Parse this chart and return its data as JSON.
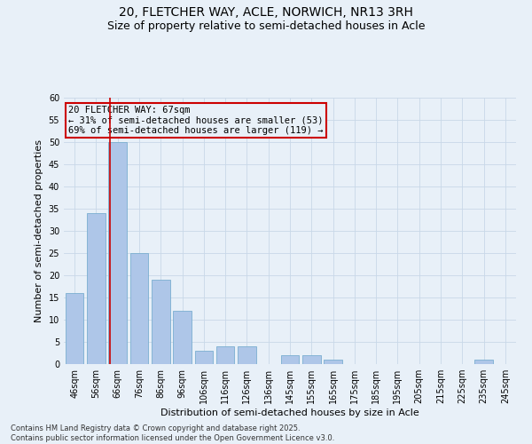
{
  "title": "20, FLETCHER WAY, ACLE, NORWICH, NR13 3RH",
  "subtitle": "Size of property relative to semi-detached houses in Acle",
  "xlabel": "Distribution of semi-detached houses by size in Acle",
  "ylabel": "Number of semi-detached properties",
  "categories": [
    "46sqm",
    "56sqm",
    "66sqm",
    "76sqm",
    "86sqm",
    "96sqm",
    "106sqm",
    "116sqm",
    "126sqm",
    "136sqm",
    "145sqm",
    "155sqm",
    "165sqm",
    "175sqm",
    "185sqm",
    "195sqm",
    "205sqm",
    "215sqm",
    "225sqm",
    "235sqm",
    "245sqm"
  ],
  "values": [
    16,
    34,
    50,
    25,
    19,
    12,
    3,
    4,
    4,
    0,
    2,
    2,
    1,
    0,
    0,
    0,
    0,
    0,
    0,
    1,
    0
  ],
  "bar_color": "#aec6e8",
  "bar_edge_color": "#7aaed0",
  "property_line_color": "#cc0000",
  "annotation_box_text": "20 FLETCHER WAY: 67sqm\n← 31% of semi-detached houses are smaller (53)\n69% of semi-detached houses are larger (119) →",
  "annotation_box_color": "#cc0000",
  "ylim": [
    0,
    60
  ],
  "yticks": [
    0,
    5,
    10,
    15,
    20,
    25,
    30,
    35,
    40,
    45,
    50,
    55,
    60
  ],
  "grid_color": "#c8d8e8",
  "background_color": "#e8f0f8",
  "footer_text": "Contains HM Land Registry data © Crown copyright and database right 2025.\nContains public sector information licensed under the Open Government Licence v3.0.",
  "title_fontsize": 10,
  "subtitle_fontsize": 9,
  "axis_label_fontsize": 8,
  "tick_fontsize": 7,
  "annotation_fontsize": 7.5,
  "footer_fontsize": 6
}
